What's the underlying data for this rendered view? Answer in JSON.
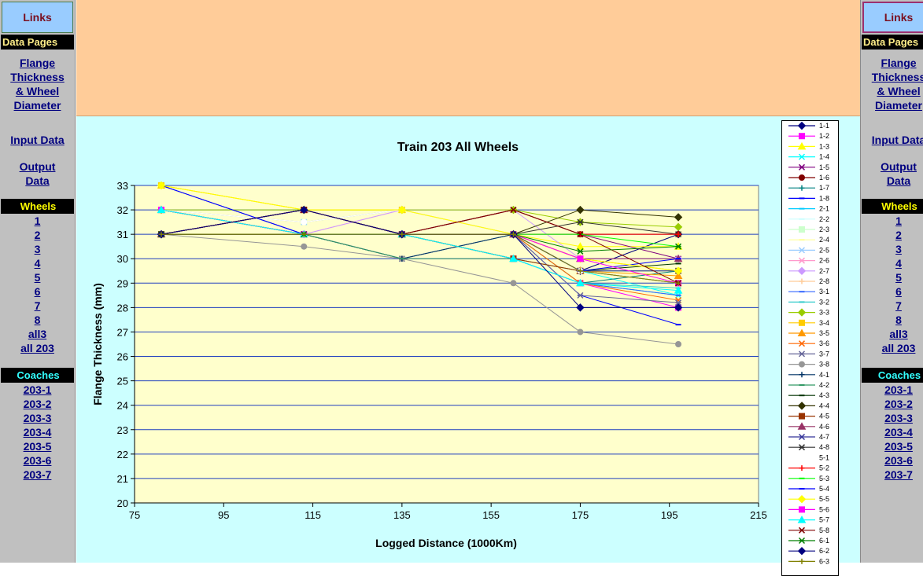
{
  "nav": {
    "links_title": "Links",
    "data_pages_title": "Data Pages",
    "flange_link": [
      "Flange",
      "Thickness",
      "& Wheel",
      "Diameter"
    ],
    "input_data_link": "Input Data",
    "output_data_link": [
      "Output",
      "Data"
    ],
    "wheels_title": "Wheels",
    "wheel_links": [
      "1",
      "2",
      "3",
      "4",
      "5",
      "6",
      "7",
      "8",
      "all3",
      "all 203"
    ],
    "coaches_title": "Coaches",
    "coach_links": [
      "203-1",
      "203-2",
      "203-3",
      "203-4",
      "203-5",
      "203-6",
      "203-7"
    ]
  },
  "colors": {
    "sidebar": "#c0c0c0",
    "banner": "#ffcc99",
    "chart_area": "#ccffff",
    "plot_area": "#ffffcc",
    "gridline": "#1f3fbf",
    "link": "#000080"
  },
  "chart_data": {
    "type": "line",
    "title": "Train 203 All Wheels",
    "xlabel": "Logged Distance (1000Km)",
    "ylabel": "Flange Thickness (mm)",
    "xlim": [
      75,
      215
    ],
    "ylim": [
      20,
      33
    ],
    "xticks": [
      75,
      95,
      115,
      135,
      155,
      175,
      195,
      215
    ],
    "yticks": [
      20,
      21,
      22,
      23,
      24,
      25,
      26,
      27,
      28,
      29,
      30,
      31,
      32,
      33
    ],
    "grid": true,
    "legend_position": "right",
    "x": [
      81,
      113,
      135,
      160,
      175,
      197
    ],
    "series": [
      {
        "name": "1-1",
        "color": "#000080",
        "marker": "diamond",
        "values": [
          31,
          32,
          31,
          31,
          29.5,
          31
        ]
      },
      {
        "name": "1-2",
        "color": "#ff00ff",
        "marker": "square",
        "values": [
          32,
          31,
          31,
          30,
          29,
          28
        ]
      },
      {
        "name": "1-3",
        "color": "#ffff00",
        "marker": "triangle",
        "values": [
          33,
          32,
          32,
          31,
          30.5,
          30.5
        ]
      },
      {
        "name": "1-4",
        "color": "#00ffff",
        "marker": "x",
        "values": [
          32,
          31.5,
          32,
          31,
          29.5,
          28.5
        ]
      },
      {
        "name": "1-5",
        "color": "#800080",
        "marker": "star",
        "values": [
          32,
          31,
          31,
          32,
          31,
          30
        ]
      },
      {
        "name": "1-6",
        "color": "#800000",
        "marker": "circle",
        "values": [
          31,
          32,
          31,
          32,
          31,
          31
        ]
      },
      {
        "name": "1-7",
        "color": "#008080",
        "marker": "plus",
        "values": [
          31,
          31,
          30,
          31,
          29,
          29.5
        ]
      },
      {
        "name": "1-8",
        "color": "#0000ff",
        "marker": "dash",
        "values": [
          33,
          31,
          31,
          31,
          28.5,
          27.3
        ]
      },
      {
        "name": "2-1",
        "color": "#00ccff",
        "marker": "dash",
        "values": [
          32,
          31,
          31,
          30,
          29,
          28.5
        ]
      },
      {
        "name": "2-2",
        "color": "#ccffff",
        "marker": "dash",
        "values": [
          32,
          31.5,
          32,
          31,
          29.5,
          29
        ]
      },
      {
        "name": "2-3",
        "color": "#ccffcc",
        "marker": "square",
        "values": [
          32,
          31.5,
          32,
          31,
          30,
          29.5
        ]
      },
      {
        "name": "2-4",
        "color": "#ffff99",
        "marker": "dash",
        "values": [
          33,
          32,
          32,
          31,
          30,
          29.5
        ]
      },
      {
        "name": "2-5",
        "color": "#99ccff",
        "marker": "x",
        "values": [
          32,
          31.5,
          32,
          31,
          29.5,
          29
        ]
      },
      {
        "name": "2-6",
        "color": "#ff99cc",
        "marker": "star",
        "values": [
          32,
          31,
          32,
          31,
          30,
          29
        ]
      },
      {
        "name": "2-7",
        "color": "#cc99ff",
        "marker": "diamond",
        "values": [
          32,
          31,
          32,
          32,
          30,
          30
        ]
      },
      {
        "name": "2-8",
        "color": "#ffcc99",
        "marker": "plus",
        "values": [
          32,
          31.5,
          32,
          31,
          30,
          29.5
        ]
      },
      {
        "name": "3-1",
        "color": "#3366ff",
        "marker": "dash",
        "values": [
          32,
          31,
          31,
          30,
          29,
          28.5
        ]
      },
      {
        "name": "3-2",
        "color": "#33cccc",
        "marker": "dash",
        "values": [
          32,
          31,
          31,
          30,
          29,
          28.8
        ]
      },
      {
        "name": "3-3",
        "color": "#99cc00",
        "marker": "diamond",
        "values": [
          32,
          32,
          32,
          32,
          31.5,
          31.3
        ]
      },
      {
        "name": "3-4",
        "color": "#ffcc00",
        "marker": "square",
        "values": [
          33,
          32,
          32,
          31,
          30,
          29.5
        ]
      },
      {
        "name": "3-5",
        "color": "#ff9900",
        "marker": "triangle",
        "values": [
          32,
          31,
          31,
          31,
          29.5,
          29.3
        ]
      },
      {
        "name": "3-6",
        "color": "#ff6600",
        "marker": "x",
        "values": [
          32,
          31,
          31,
          31,
          29,
          28.3
        ]
      },
      {
        "name": "3-7",
        "color": "#666699",
        "marker": "star",
        "values": [
          31,
          31,
          30,
          31,
          28.5,
          28.2
        ]
      },
      {
        "name": "3-8",
        "color": "#969696",
        "marker": "circle",
        "values": [
          31,
          30.5,
          30,
          29,
          27,
          26.5
        ]
      },
      {
        "name": "4-1",
        "color": "#003366",
        "marker": "plus",
        "values": [
          31,
          31,
          30,
          31,
          29.5,
          29
        ]
      },
      {
        "name": "4-2",
        "color": "#339966",
        "marker": "dash",
        "values": [
          31,
          31,
          30,
          30,
          29.5,
          29.5
        ]
      },
      {
        "name": "4-3",
        "color": "#003300",
        "marker": "dash",
        "values": [
          31,
          32,
          31,
          31,
          29.5,
          29.8
        ]
      },
      {
        "name": "4-4",
        "color": "#333300",
        "marker": "diamond",
        "values": [
          31,
          32,
          31,
          31,
          32,
          31.7
        ]
      },
      {
        "name": "4-5",
        "color": "#993300",
        "marker": "square",
        "values": [
          31,
          32,
          31,
          30,
          29.5,
          29
        ]
      },
      {
        "name": "4-6",
        "color": "#993366",
        "marker": "triangle",
        "values": [
          31,
          32,
          31,
          31,
          30,
          30
        ]
      },
      {
        "name": "4-7",
        "color": "#333399",
        "marker": "x",
        "values": [
          31,
          31,
          31,
          31,
          29.5,
          29.5
        ]
      },
      {
        "name": "4-8",
        "color": "#333333",
        "marker": "star",
        "values": [
          31,
          32,
          31,
          31,
          31.5,
          31
        ]
      },
      {
        "name": "5-1",
        "color": "#ffffff",
        "marker": "circle",
        "values": [
          32,
          31.5,
          32,
          31,
          29.5,
          29
        ]
      },
      {
        "name": "5-2",
        "color": "#ff0000",
        "marker": "plus",
        "values": [
          31,
          31,
          31,
          31,
          31,
          31
        ]
      },
      {
        "name": "5-3",
        "color": "#00ff00",
        "marker": "dash",
        "values": [
          32,
          31,
          31,
          31,
          31,
          30.5
        ]
      },
      {
        "name": "5-4",
        "color": "#0000ff",
        "marker": "dash",
        "values": [
          33,
          31,
          31,
          31,
          29.5,
          30
        ]
      },
      {
        "name": "5-5",
        "color": "#ffff00",
        "marker": "diamond",
        "values": [
          33,
          32,
          32,
          31,
          30,
          29.5
        ]
      },
      {
        "name": "5-6",
        "color": "#ff00ff",
        "marker": "square",
        "values": [
          32,
          31,
          31,
          31,
          30,
          29
        ]
      },
      {
        "name": "5-7",
        "color": "#00ffff",
        "marker": "triangle",
        "values": [
          32,
          31,
          31,
          30,
          29,
          28.7
        ]
      },
      {
        "name": "5-8",
        "color": "#800000",
        "marker": "x",
        "values": [
          31,
          32,
          31,
          32,
          31,
          29
        ]
      },
      {
        "name": "6-1",
        "color": "#008000",
        "marker": "star",
        "values": [
          31,
          31,
          31,
          31,
          30.3,
          30.5
        ]
      },
      {
        "name": "6-2",
        "color": "#000080",
        "marker": "diamond",
        "values": [
          31,
          32,
          31,
          31,
          28,
          28
        ]
      },
      {
        "name": "6-3",
        "color": "#808000",
        "marker": "plus",
        "values": [
          31,
          31,
          31,
          31,
          29.5,
          29
        ]
      }
    ]
  }
}
